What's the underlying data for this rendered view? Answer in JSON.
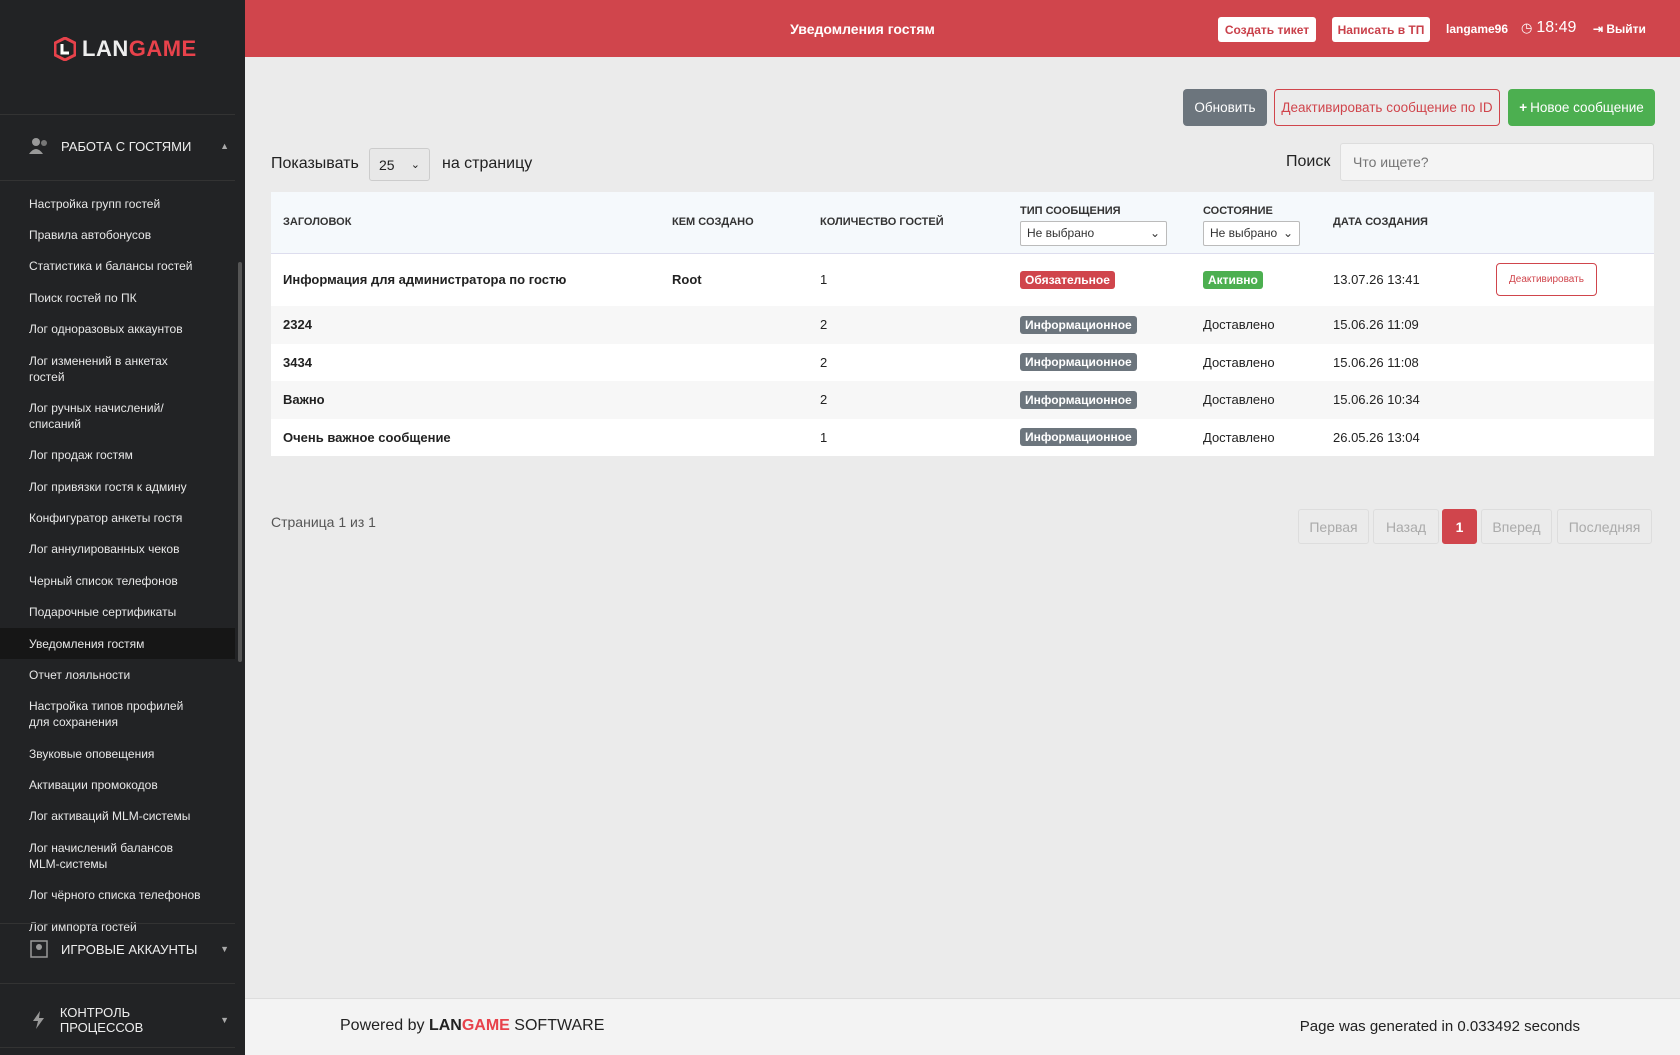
{
  "sidebar": {
    "logo": [
      "LAN",
      "GAME"
    ],
    "section": "РАБОТА С ГОСТЯМИ",
    "items": [
      {
        "label": "Настройка групп гостей"
      },
      {
        "label": "Правила автобонусов"
      },
      {
        "label": "Статистика и балансы гостей"
      },
      {
        "label": "Поиск гостей по ПК"
      },
      {
        "label": "Лог одноразовых аккаунтов"
      },
      {
        "label": "Лог изменений в анкетах гостей"
      },
      {
        "label": "Лог ручных начислений/ списаний"
      },
      {
        "label": "Лог продаж гостям"
      },
      {
        "label": "Лог привязки гостя к админу"
      },
      {
        "label": "Конфигуратор анкеты гостя"
      },
      {
        "label": "Лог аннулированных чеков"
      },
      {
        "label": "Черный список телефонов"
      },
      {
        "label": "Подарочные сертификаты"
      },
      {
        "label": "Уведомления гостям",
        "active": true
      },
      {
        "label": "Отчет лояльности"
      },
      {
        "label": "Настройка типов профилей для сохранения"
      },
      {
        "label": "Звуковые оповещения"
      },
      {
        "label": "Активации промокодов"
      },
      {
        "label": "Лог активаций MLM-системы"
      },
      {
        "label": "Лог начислений балансов MLM-системы"
      },
      {
        "label": "Лог чёрного списка телефонов"
      },
      {
        "label": "Лог импорта гостей"
      }
    ],
    "section2": "ИГРОВЫЕ АККАУНТЫ",
    "section3": "КОНТРОЛЬ ПРОЦЕССОВ"
  },
  "header": {
    "title": "Уведомления гостям",
    "create_ticket": "Создать тикет",
    "write_support": "Написать в ТП",
    "user": "langame96",
    "time": "18:49",
    "logout": "Выйти"
  },
  "toolbar": {
    "refresh": "Обновить",
    "deactivate_by_id": "Деактивировать сообщение по ID",
    "new_message": "Новое сообщение"
  },
  "controls": {
    "show": "Показывать",
    "per_page": 25,
    "per_page_suffix": "на страницу",
    "search": "Поиск",
    "search_placeholder": "Что ищете?"
  },
  "table": {
    "headers": [
      "ЗАГОЛОВОК",
      "КЕМ СОЗДАНО",
      "КОЛИЧЕСТВО ГОСТЕЙ",
      "ТИП СООБЩЕНИЯ",
      "СОСТОЯНИЕ",
      "ДАТА СОЗДАНИЯ"
    ],
    "type_filter": "Не выбрано",
    "state_filter": "Не выбрано",
    "rows": [
      {
        "title": "Информация для администратора по гостю",
        "author": "Root",
        "count": 1,
        "type": "Обязательное",
        "type_style": "danger",
        "state": "Активно",
        "state_style": "success",
        "date": "13.07.26 13:41",
        "action": "Деактивировать"
      },
      {
        "title": "2324",
        "count": 2,
        "type": "Информационное",
        "type_style": "secondary",
        "state": "Доставлено",
        "state_style": "plain",
        "date": "15.06.26 11:09"
      },
      {
        "title": "3434",
        "count": 2,
        "type": "Информационное",
        "type_style": "secondary",
        "state": "Доставлено",
        "state_style": "plain",
        "date": "15.06.26 11:08"
      },
      {
        "title": "Важно",
        "count": 2,
        "type": "Информационное",
        "type_style": "secondary",
        "state": "Доставлено",
        "state_style": "plain",
        "date": "15.06.26 10:34"
      },
      {
        "title": "Очень важное сообщение",
        "count": 1,
        "type": "Информационное",
        "type_style": "secondary",
        "state": "Доставлено",
        "state_style": "plain",
        "date": "26.05.26 13:04"
      }
    ]
  },
  "pagination": {
    "info": "Страница 1 из 1",
    "first": "Первая",
    "prev": "Назад",
    "current": 1,
    "next": "Вперед",
    "last": "Последняя"
  },
  "footer": {
    "powered_by": "Powered by",
    "brand": [
      "LAN",
      "GAME"
    ],
    "software": "SOFTWARE",
    "generated": "Page was generated in 0.033492 seconds"
  }
}
